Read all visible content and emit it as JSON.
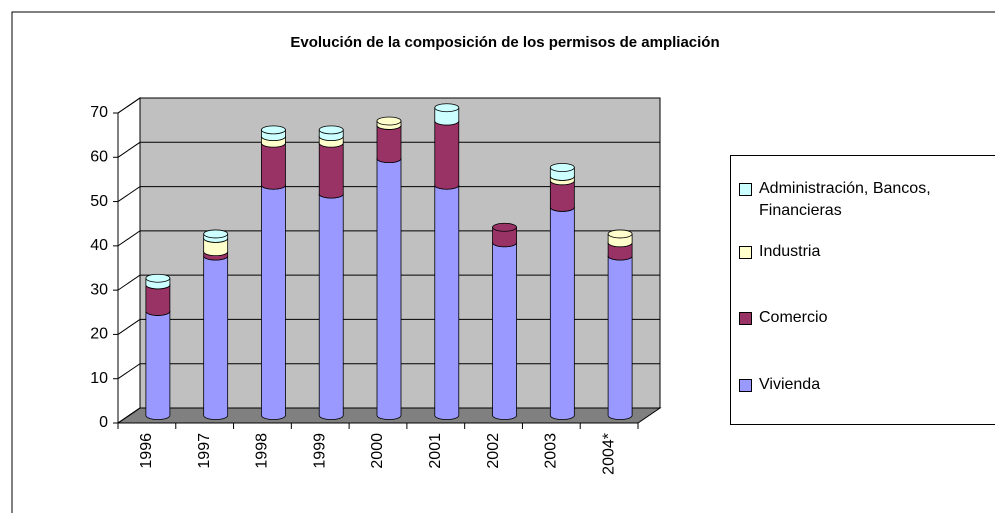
{
  "chart_data": {
    "type": "bar3d_stacked",
    "title": "Evolución de la composición de los permisos de ampliación",
    "categories": [
      "1996",
      "1997",
      "1998",
      "1999",
      "2000",
      "2001",
      "2002",
      "2003",
      "2004*"
    ],
    "series": [
      {
        "name": "Vivienda",
        "color": "#9999ff",
        "values": [
          23.5,
          36,
          52,
          50,
          58,
          52,
          39,
          47,
          36
        ]
      },
      {
        "name": "Comercio",
        "color": "#993366",
        "values": [
          6,
          1,
          9.5,
          11.5,
          7.5,
          14.5,
          3.5,
          6,
          3
        ]
      },
      {
        "name": "Industria",
        "color": "#ffffcc",
        "values": [
          0,
          3,
          1.5,
          1.5,
          1,
          0,
          0,
          1,
          2
        ]
      },
      {
        "name": "Administración, Bancos, Financieras",
        "color": "#ccffff",
        "values": [
          1.5,
          1,
          1.5,
          1.5,
          0,
          3,
          0,
          2,
          0
        ]
      }
    ],
    "ylim": [
      0,
      70
    ],
    "yticks": [
      0,
      10,
      20,
      30,
      40,
      50,
      60,
      70
    ],
    "grid": true,
    "legend": "right"
  }
}
